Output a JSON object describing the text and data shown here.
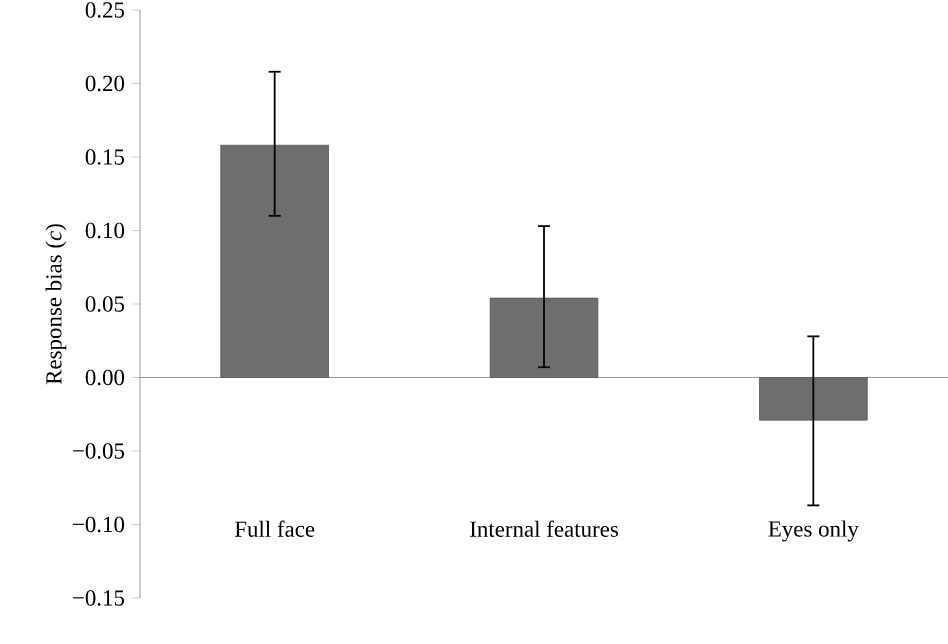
{
  "chart_data": {
    "type": "bar",
    "ylabel": "Response bias (*c*)",
    "categories": [
      "Full face",
      "Internal features",
      "Eyes only"
    ],
    "values": [
      0.158,
      0.054,
      -0.029
    ],
    "errors": [
      [
        0.11,
        0.208
      ],
      [
        0.007,
        0.103
      ],
      [
        -0.087,
        0.028
      ]
    ],
    "color": "#6e6e6e",
    "ylim": [
      -0.15,
      0.25
    ],
    "yticks": [
      {
        "value": -0.15,
        "label": "−0.15"
      },
      {
        "value": -0.1,
        "label": "−0.10"
      },
      {
        "value": -0.05,
        "label": "−0.05"
      },
      {
        "value": 0,
        "label": "0.00"
      },
      {
        "value": 0.05,
        "label": "0.05"
      },
      {
        "value": 0.1,
        "label": "0.10"
      },
      {
        "value": 0.15,
        "label": "0.15"
      },
      {
        "value": 0.2,
        "label": "0.20"
      },
      {
        "value": 0.25,
        "label": "0.25"
      }
    ],
    "data_labels": false
  }
}
